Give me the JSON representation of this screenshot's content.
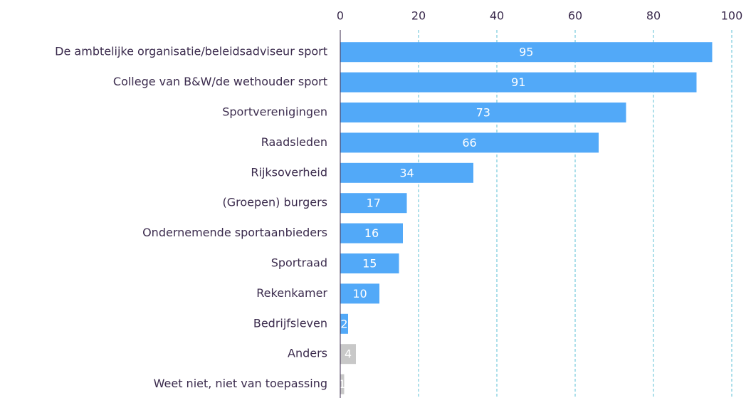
{
  "chart_data": {
    "type": "bar",
    "orientation": "horizontal",
    "categories": [
      "De ambtelijke organisatie/beleidsadviseur sport",
      "College van B&W/de wethouder sport",
      "Sportverenigingen",
      "Raadsleden",
      "Rijksoverheid",
      "(Groepen) burgers",
      "Ondernemende sportaanbieders",
      "Sportraad",
      "Rekenkamer",
      "Bedrijfsleven",
      "Anders",
      "Weet niet, niet van toepassing"
    ],
    "values": [
      95,
      91,
      73,
      66,
      34,
      17,
      16,
      15,
      10,
      2,
      4,
      1
    ],
    "colors": [
      "#52a9f8",
      "#52a9f8",
      "#52a9f8",
      "#52a9f8",
      "#52a9f8",
      "#52a9f8",
      "#52a9f8",
      "#52a9f8",
      "#52a9f8",
      "#52a9f8",
      "#c8c8c8",
      "#c8c8c8"
    ],
    "xlim": [
      0,
      100
    ],
    "xticks": [
      0,
      20,
      40,
      60,
      80,
      100
    ],
    "grid": true
  }
}
